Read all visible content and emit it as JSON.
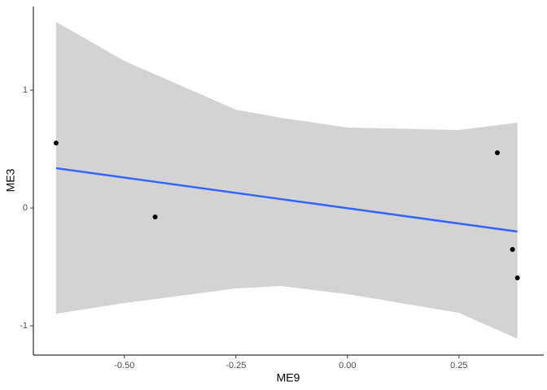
{
  "chart_data": {
    "type": "scatter",
    "x_label": "ME9",
    "y_label": "ME3",
    "xlim": [
      -0.704,
      0.44
    ],
    "ylim": [
      -1.248,
      1.71
    ],
    "xticks": [
      {
        "value": -0.5,
        "label": "-0.50"
      },
      {
        "value": -0.25,
        "label": "-0.25"
      },
      {
        "value": 0,
        "label": "0.00"
      },
      {
        "value": 0.25,
        "label": "0.25"
      }
    ],
    "yticks": [
      -1,
      0,
      1
    ],
    "points": {
      "color": "#000000",
      "x": [
        -0.653,
        -0.431,
        0.336,
        0.37,
        0.381
      ],
      "y": [
        0.552,
        -0.076,
        0.469,
        -0.352,
        -0.593
      ]
    },
    "fit": {
      "color": "#3366ff",
      "x": [
        -0.653,
        0.381
      ],
      "y": [
        0.338,
        -0.2
      ]
    },
    "band": {
      "color": "#d3d3d3",
      "x": [
        -0.653,
        -0.5,
        -0.25,
        -0.15,
        0,
        0.25,
        0.381
      ],
      "upper": [
        1.579,
        1.248,
        0.834,
        0.766,
        0.683,
        0.662,
        0.724
      ],
      "lower": [
        -0.897,
        -0.807,
        -0.683,
        -0.662,
        -0.731,
        -0.89,
        -1.11
      ]
    }
  }
}
